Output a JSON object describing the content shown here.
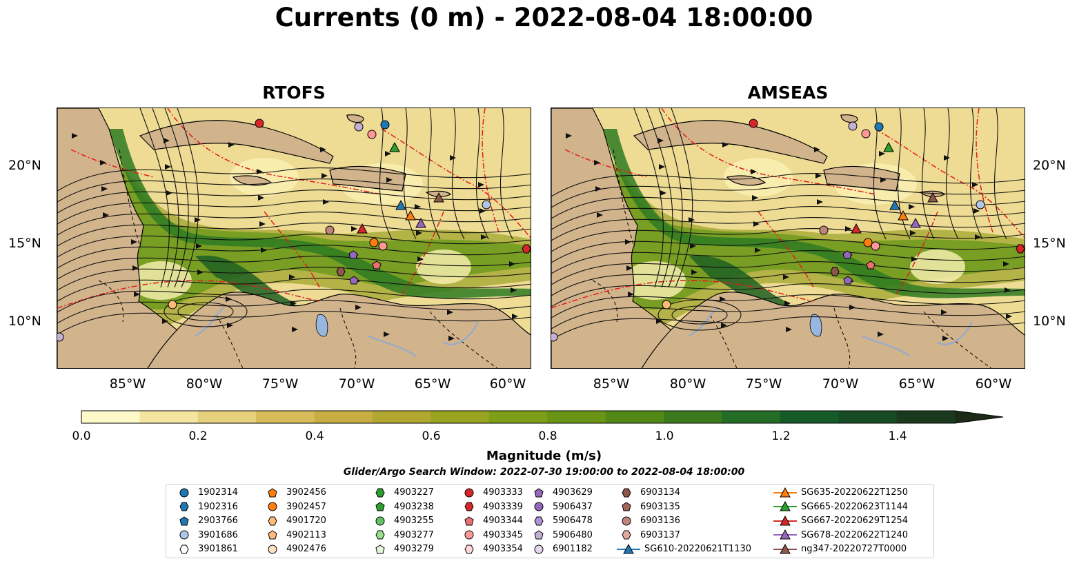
{
  "title": "Currents (0 m) - 2022-08-04 18:00:00",
  "panels": [
    {
      "title": "RTOFS"
    },
    {
      "title": "AMSEAS"
    }
  ],
  "lat_labels": [
    "20°N",
    "15°N",
    "10°N"
  ],
  "lon_labels": [
    "85°W",
    "80°W",
    "75°W",
    "70°W",
    "65°W",
    "60°W"
  ],
  "colorbar": {
    "label": "Magnitude (m/s)",
    "ticks": [
      "0.0",
      "0.2",
      "0.4",
      "0.6",
      "0.8",
      "1.0",
      "1.2",
      "1.4"
    ],
    "range": [
      0,
      1.5
    ],
    "extend": "max",
    "colors": [
      "#fef9c8",
      "#f3e4a0",
      "#e6cf7d",
      "#d8bc5b",
      "#c8ae42",
      "#b1a731",
      "#98a31f",
      "#7f9e18",
      "#6a9415",
      "#528816",
      "#3b7a1c",
      "#236d26",
      "#155b27",
      "#174b23",
      "#1b391c",
      "#1b2b17"
    ]
  },
  "search_window": "Glider/Argo Search Window: 2022-07-30 19:00:00 to 2022-08-04 18:00:00",
  "legend": [
    [
      {
        "label": "1902314",
        "marker": "circle",
        "color": "#1f77b4"
      },
      {
        "label": "1902316",
        "marker": "hexagon",
        "color": "#1f77b4"
      },
      {
        "label": "2903766",
        "marker": "pentagon",
        "color": "#1f77b4"
      },
      {
        "label": "3901686",
        "marker": "circle",
        "color": "#aec7e8"
      },
      {
        "label": "3901861",
        "marker": "hexagon",
        "color": "#ffffff"
      }
    ],
    [
      {
        "label": "3902456",
        "marker": "pentagon",
        "color": "#ff7f0e"
      },
      {
        "label": "3902457",
        "marker": "circle",
        "color": "#ff7f0e"
      },
      {
        "label": "4901720",
        "marker": "hexagon",
        "color": "#ffbb78"
      },
      {
        "label": "4902113",
        "marker": "pentagon",
        "color": "#ffbb78"
      },
      {
        "label": "4902476",
        "marker": "circle",
        "color": "#ffe1c2"
      }
    ],
    [
      {
        "label": "4903227",
        "marker": "hexagon",
        "color": "#2ca02c"
      },
      {
        "label": "4903238",
        "marker": "pentagon",
        "color": "#2ca02c"
      },
      {
        "label": "4903255",
        "marker": "circle",
        "color": "#66c266"
      },
      {
        "label": "4903277",
        "marker": "hexagon",
        "color": "#98df8a"
      },
      {
        "label": "4903279",
        "marker": "pentagon",
        "color": "#e3f7dc"
      }
    ],
    [
      {
        "label": "4903333",
        "marker": "circle",
        "color": "#d62728"
      },
      {
        "label": "4903339",
        "marker": "hexagon",
        "color": "#d62728"
      },
      {
        "label": "4903344",
        "marker": "pentagon",
        "color": "#ee6f6f"
      },
      {
        "label": "4903345",
        "marker": "circle",
        "color": "#ff9896"
      },
      {
        "label": "4903354",
        "marker": "hexagon",
        "color": "#ffd8d6"
      }
    ],
    [
      {
        "label": "4903629",
        "marker": "pentagon",
        "color": "#9467bd"
      },
      {
        "label": "5906437",
        "marker": "circle",
        "color": "#9467bd"
      },
      {
        "label": "5906478",
        "marker": "hexagon",
        "color": "#b191d6"
      },
      {
        "label": "5906480",
        "marker": "pentagon",
        "color": "#c5b0d5"
      },
      {
        "label": "6901182",
        "marker": "circle",
        "color": "#e6d6f2"
      }
    ],
    [
      {
        "label": "6903134",
        "marker": "hexagon",
        "color": "#8c564b"
      },
      {
        "label": "6903135",
        "marker": "pentagon",
        "color": "#a0675c"
      },
      {
        "label": "6903136",
        "marker": "circle",
        "color": "#c0857a"
      },
      {
        "label": "6903137",
        "marker": "hexagon",
        "color": "#e2ab9c"
      },
      {
        "label": "SG610-20220621T1130",
        "marker": "triangle-line",
        "color": "#1f77b4"
      }
    ],
    [
      {
        "label": "SG635-20220622T1250",
        "marker": "triangle-line",
        "color": "#ff7f0e"
      },
      {
        "label": "SG665-20220623T1144",
        "marker": "triangle-line",
        "color": "#2ca02c"
      },
      {
        "label": "SG667-20220629T1254",
        "marker": "triangle-line",
        "color": "#d62728"
      },
      {
        "label": "SG678-20220622T1240",
        "marker": "triangle-line",
        "color": "#9467bd"
      },
      {
        "label": "ng347-20220727T0000",
        "marker": "triangle-line",
        "color": "#8c564b"
      }
    ]
  ],
  "colors": {
    "land": "#d2b48c",
    "pacific": "#97b7e0",
    "eez": "#e41a1c",
    "streamline": "#111111"
  }
}
